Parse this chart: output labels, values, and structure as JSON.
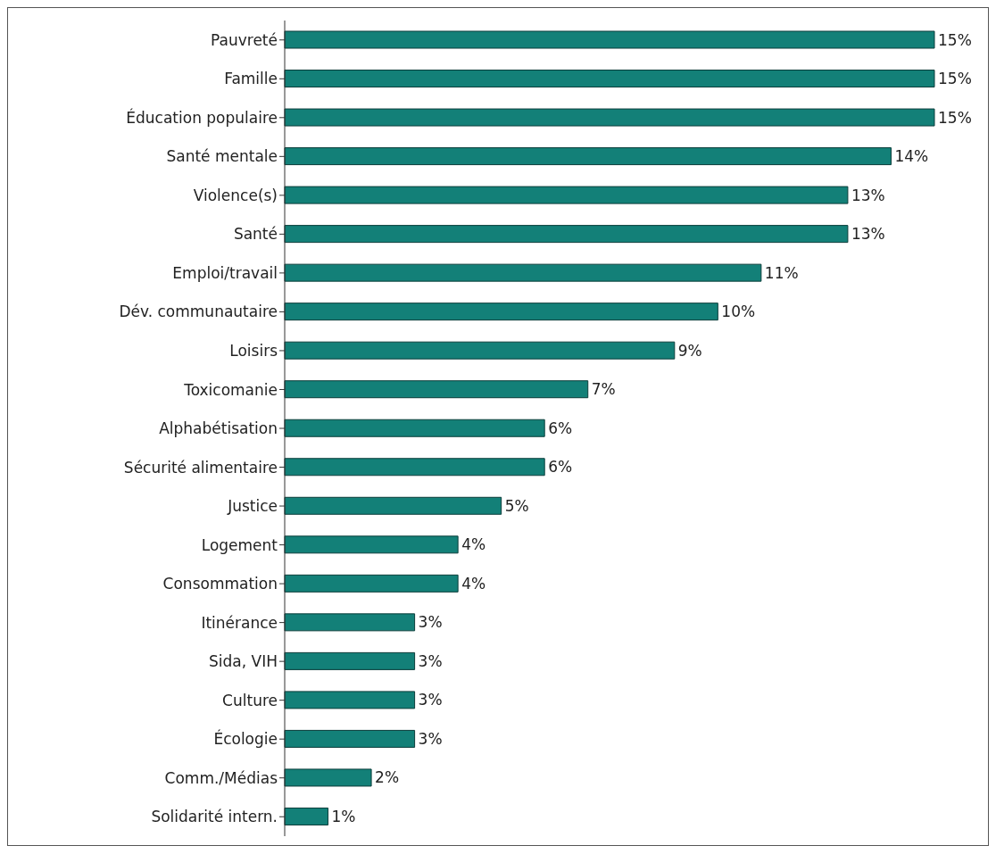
{
  "chart_data": {
    "type": "bar",
    "orientation": "horizontal",
    "categories": [
      "Pauvreté",
      "Famille",
      "Éducation populaire",
      "Santé mentale",
      "Violence(s)",
      "Santé",
      "Emploi/travail",
      "Dév. communautaire",
      "Loisirs",
      "Toxicomanie",
      "Alphabétisation",
      "Sécurité alimentaire",
      "Justice",
      "Logement",
      "Consommation",
      "Itinérance",
      "Sida, VIH",
      "Culture",
      "Écologie",
      "Comm./Médias",
      "Solidarité intern."
    ],
    "values": [
      15,
      15,
      15,
      14,
      13,
      13,
      11,
      10,
      9,
      7,
      6,
      6,
      5,
      4,
      4,
      3,
      3,
      3,
      3,
      2,
      1
    ],
    "value_labels": [
      "15%",
      "15%",
      "15%",
      "14%",
      "13%",
      "13%",
      "11%",
      "10%",
      "9%",
      "7%",
      "6%",
      "6%",
      "5%",
      "4%",
      "4%",
      "3%",
      "3%",
      "3%",
      "3%",
      "2%",
      "1%"
    ],
    "color": "#138078"
  }
}
